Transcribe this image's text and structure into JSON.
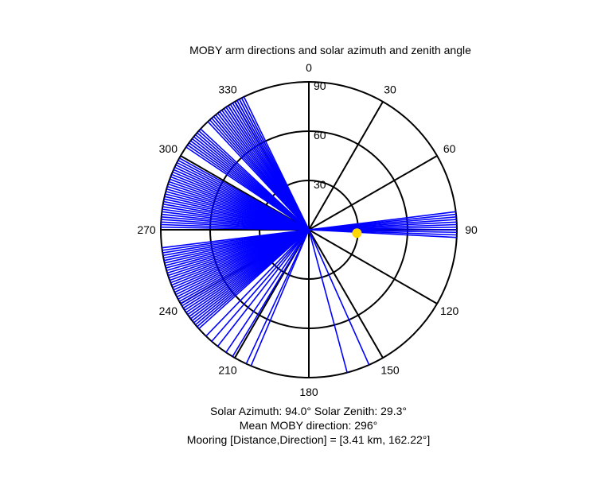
{
  "chart_data": {
    "type": "polar",
    "title": "MOBY arm directions and solar azimuth and zenith angle",
    "angle_ticks": [
      "0",
      "30",
      "60",
      "90",
      "120",
      "150",
      "180",
      "210",
      "240",
      "270",
      "300",
      "330"
    ],
    "radius_ticks": [
      "30",
      "60",
      "90"
    ],
    "radius_max": 90,
    "orientation": "clockwise, 0 at top",
    "arm_direction_angles_deg": [
      334,
      333,
      333,
      332,
      332,
      331,
      331,
      330,
      330,
      329,
      328,
      328,
      327,
      327,
      326,
      326,
      325,
      324,
      323,
      323,
      322,
      321,
      320,
      320,
      319,
      318,
      317,
      313,
      312,
      311,
      310,
      309,
      308,
      307,
      306,
      305,
      304,
      299,
      298,
      297,
      296,
      295,
      294,
      293,
      292,
      291,
      290,
      289,
      288,
      287,
      286,
      285,
      284,
      283,
      282,
      281,
      280,
      279,
      278,
      277,
      276,
      275,
      274,
      273,
      272,
      271,
      263,
      262,
      261,
      260,
      259,
      258,
      257,
      256,
      255,
      254,
      253,
      252,
      251,
      250,
      249,
      248,
      247,
      246,
      245,
      244,
      243,
      242,
      241,
      240,
      239,
      238,
      237,
      236,
      235,
      234,
      233,
      232,
      231,
      230,
      229,
      228,
      224,
      221,
      218,
      214,
      211,
      205,
      203,
      165,
      156,
      83,
      84,
      85,
      86,
      87,
      88,
      89,
      90,
      91,
      92,
      93
    ],
    "arm_color": "#0000ff",
    "sun": {
      "azimuth_deg": 94.0,
      "zenith_deg": 29.3,
      "color": "#ffd700"
    },
    "grid": "on",
    "captions": [
      "Solar Azimuth: 94.0°    Solar Zenith: 29.3°",
      "Mean MOBY direction: 296°",
      "Mooring [Distance,Direction] = [3.41 km, 162.22°]"
    ]
  }
}
